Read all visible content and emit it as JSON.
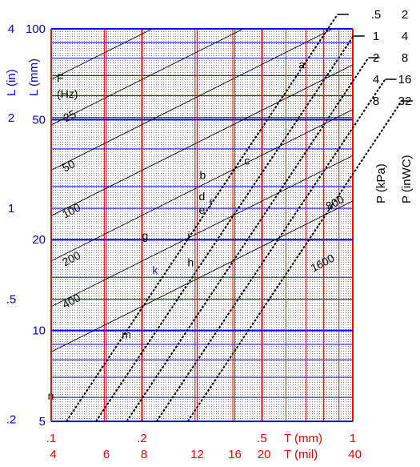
{
  "chart_data": {
    "type": "line",
    "title": "",
    "xscale": "log",
    "yscale": "log",
    "xlim": [
      0.1,
      1
    ],
    "ylim": [
      5,
      100
    ],
    "x_axis_mm": {
      "label": "T (mm)",
      "ticks": [
        {
          "value": 0.1,
          "label": ".1"
        },
        {
          "value": 0.2,
          "label": ".2"
        },
        {
          "value": 0.5,
          "label": ".5"
        },
        {
          "value": 1,
          "label": "1"
        }
      ]
    },
    "x_axis_mil": {
      "label": "T (mil)",
      "ticks": [
        {
          "mil": 4,
          "label": "4"
        },
        {
          "mil": 6,
          "label": "6"
        },
        {
          "mil": 8,
          "label": "8"
        },
        {
          "mil": 12,
          "label": "12"
        },
        {
          "mil": 16,
          "label": "16"
        },
        {
          "mil": 20,
          "label": "20"
        },
        {
          "mil": 40,
          "label": "40"
        }
      ]
    },
    "y_axis_mm": {
      "label": "L (mm)",
      "ticks": [
        {
          "value": 100,
          "label": "100"
        },
        {
          "value": 50,
          "label": "50"
        },
        {
          "value": 20,
          "label": "20"
        },
        {
          "value": 10,
          "label": "10"
        },
        {
          "value": 5,
          "label": "5"
        }
      ]
    },
    "y_axis_in": {
      "label": "L (in)",
      "ticks": [
        {
          "inch": 4,
          "label": "4"
        },
        {
          "inch": 2,
          "label": "2"
        },
        {
          "inch": 1,
          "label": "1"
        },
        {
          "inch": 0.5,
          "label": ".5"
        },
        {
          "inch": 0.2,
          "label": ".2"
        }
      ]
    },
    "frequency_label": [
      "F",
      "(Hz)"
    ],
    "frequency_lines": [
      {
        "label": "25",
        "x": [
          0.1,
          1
        ],
        "y": [
          68,
          215
        ]
      },
      {
        "label": "50",
        "x": [
          0.1,
          1
        ],
        "y": [
          48,
          152
        ]
      },
      {
        "label": "100",
        "x": [
          0.1,
          1
        ],
        "y": [
          34,
          108
        ]
      },
      {
        "label": "200",
        "x": [
          0.1,
          1
        ],
        "y": [
          24,
          76
        ]
      },
      {
        "label": "400",
        "x": [
          0.1,
          1
        ],
        "y": [
          17,
          54
        ]
      },
      {
        "label": "800",
        "x": [
          0.1,
          1
        ],
        "y": [
          12,
          38
        ]
      },
      {
        "label": "1600",
        "x": [
          0.1,
          1
        ],
        "y": [
          8.5,
          26.9
        ]
      }
    ],
    "pressure_lines": [
      {
        "label_kpa": ".5",
        "label_inwc": "2",
        "x": [
          0.1,
          1
        ],
        "y": [
          4.2,
          133
        ]
      },
      {
        "label_kpa": "1",
        "label_inwc": "4",
        "x": [
          0.1,
          1
        ],
        "y": [
          3.0,
          94
        ]
      },
      {
        "label_kpa": "2",
        "label_inwc": "8",
        "x": [
          0.1,
          1
        ],
        "y": [
          2.1,
          67
        ]
      },
      {
        "label_kpa": "4",
        "label_inwc": "16",
        "x": [
          0.1,
          1
        ],
        "y": [
          1.5,
          47
        ]
      },
      {
        "label_kpa": "8",
        "label_inwc": "32",
        "x": [
          0.1,
          1
        ],
        "y": [
          1.05,
          33
        ]
      }
    ],
    "pressure_axis_labels": [
      "P (kPa)",
      "P (inWC)"
    ],
    "points": [
      {
        "label": "a",
        "x": 0.67,
        "y": 73
      },
      {
        "label": "b",
        "x": 0.32,
        "y": 31
      },
      {
        "label": "c",
        "x": 0.45,
        "y": 35
      },
      {
        "label": "d",
        "x": 0.32,
        "y": 27
      },
      {
        "label": "e",
        "x": 0.32,
        "y": 25
      },
      {
        "label": "f",
        "x": 0.33,
        "y": 26
      },
      {
        "label": "g",
        "x": 0.21,
        "y": 20
      },
      {
        "label": "i",
        "x": 0.29,
        "y": 20
      },
      {
        "label": "h",
        "x": 0.29,
        "y": 18
      },
      {
        "label": "k",
        "x": 0.23,
        "y": 17
      },
      {
        "label": "m",
        "x": 0.18,
        "y": 9.9
      },
      {
        "label": "n",
        "x": 0.101,
        "y": 6.2
      }
    ],
    "grid": true
  },
  "colors": {
    "red_grid": "#ff0000",
    "blue_grid": "#0000ff",
    "label_blue": "#0000cc",
    "label_red": "#ee0000",
    "freq_line": "#000000",
    "pressure_line": "#000000",
    "k_label": "#2222cc",
    "dots": "#000000"
  }
}
